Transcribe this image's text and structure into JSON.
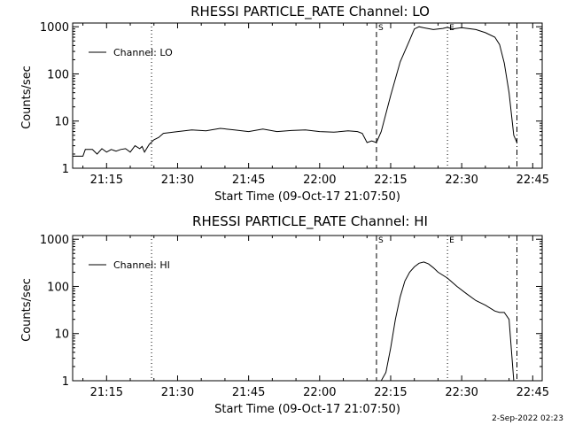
{
  "footer_stamp": "2-Sep-2022 02:23",
  "chart_data": [
    {
      "type": "line",
      "title": "RHESSI PARTICLE_RATE Channel: LO",
      "xlabel": "Start Time (09-Oct-17 21:07:50)",
      "ylabel": "Counts/sec",
      "yscale": "log",
      "xlim": [
        "21:07:50",
        "22:47:00"
      ],
      "ylim": [
        1,
        1200
      ],
      "xticks": [
        "21:15",
        "21:30",
        "21:45",
        "22:00",
        "22:15",
        "22:30",
        "22:45"
      ],
      "yticks": [
        "1",
        "10",
        "100",
        "1000"
      ],
      "legend": {
        "position": "top-left",
        "entries": [
          "Channel: LO"
        ]
      },
      "markers": [
        {
          "label": "",
          "x": "21:24:30",
          "style": "dotted"
        },
        {
          "label": "S",
          "x": "22:12:00",
          "style": "dashed"
        },
        {
          "label": "E",
          "x": "22:27:00",
          "style": "dotted"
        },
        {
          "label": "",
          "x": "22:41:40",
          "style": "dashdot"
        }
      ],
      "series": [
        {
          "name": "Channel: LO",
          "x": [
            "21:07:50",
            "21:10:00",
            "21:10:30",
            "21:12:00",
            "21:13:00",
            "21:14:00",
            "21:15:00",
            "21:16:00",
            "21:17:00",
            "21:18:00",
            "21:19:00",
            "21:20:00",
            "21:21:00",
            "21:22:00",
            "21:22:30",
            "21:23:00",
            "21:24:00",
            "21:25:00",
            "21:26:00",
            "21:27:00",
            "21:30:00",
            "21:33:00",
            "21:36:00",
            "21:39:00",
            "21:42:00",
            "21:45:00",
            "21:48:00",
            "21:51:00",
            "21:54:00",
            "21:57:00",
            "22:00:00",
            "22:03:00",
            "22:06:00",
            "22:08:00",
            "22:09:00",
            "22:10:00",
            "22:11:00",
            "22:12:00",
            "22:13:00",
            "22:15:00",
            "22:17:00",
            "22:19:00",
            "22:20:00",
            "22:21:00",
            "22:22:00",
            "22:24:00",
            "22:26:00",
            "22:27:00",
            "22:28:00",
            "22:30:00",
            "22:33:00",
            "22:35:00",
            "22:37:00",
            "22:38:00",
            "22:39:00",
            "22:40:00",
            "22:41:00",
            "22:41:40"
          ],
          "y": [
            1.8,
            1.8,
            2.5,
            2.5,
            2.0,
            2.6,
            2.2,
            2.5,
            2.3,
            2.5,
            2.6,
            2.2,
            3.0,
            2.6,
            2.9,
            2.2,
            3.2,
            4.0,
            4.5,
            5.5,
            6.0,
            6.5,
            6.2,
            7.0,
            6.5,
            6.0,
            6.8,
            6.0,
            6.3,
            6.5,
            6.0,
            5.8,
            6.2,
            6.0,
            5.5,
            3.5,
            3.8,
            3.5,
            6.0,
            35,
            180,
            520,
            900,
            1000,
            950,
            870,
            920,
            970,
            900,
            960,
            870,
            750,
            600,
            420,
            170,
            40,
            5,
            3.5
          ]
        }
      ]
    },
    {
      "type": "line",
      "title": "RHESSI PARTICLE_RATE Channel: HI",
      "xlabel": "Start Time (09-Oct-17 21:07:50)",
      "ylabel": "Counts/sec",
      "yscale": "log",
      "xlim": [
        "21:07:50",
        "22:47:00"
      ],
      "ylim": [
        1,
        1200
      ],
      "xticks": [
        "21:15",
        "21:30",
        "21:45",
        "22:00",
        "22:15",
        "22:30",
        "22:45"
      ],
      "yticks": [
        "1",
        "10",
        "100",
        "1000"
      ],
      "legend": {
        "position": "top-left",
        "entries": [
          "Channel: HI"
        ]
      },
      "markers": [
        {
          "label": "",
          "x": "21:24:30",
          "style": "dotted"
        },
        {
          "label": "S",
          "x": "22:12:00",
          "style": "dashed"
        },
        {
          "label": "E",
          "x": "22:27:00",
          "style": "dotted"
        },
        {
          "label": "",
          "x": "22:41:40",
          "style": "dashdot"
        }
      ],
      "series": [
        {
          "name": "Channel: HI",
          "x": [
            "22:13:00",
            "22:14:00",
            "22:15:00",
            "22:16:00",
            "22:17:00",
            "22:18:00",
            "22:19:00",
            "22:20:00",
            "22:21:00",
            "22:22:00",
            "22:23:00",
            "22:24:00",
            "22:25:00",
            "22:27:00",
            "22:29:00",
            "22:31:00",
            "22:33:00",
            "22:35:00",
            "22:37:00",
            "22:38:00",
            "22:39:00",
            "22:40:00",
            "22:41:00"
          ],
          "y": [
            1.0,
            1.5,
            5.0,
            20,
            60,
            130,
            200,
            260,
            310,
            330,
            300,
            250,
            200,
            150,
            100,
            70,
            50,
            40,
            30,
            28,
            28,
            20,
            1.0
          ]
        }
      ]
    }
  ]
}
